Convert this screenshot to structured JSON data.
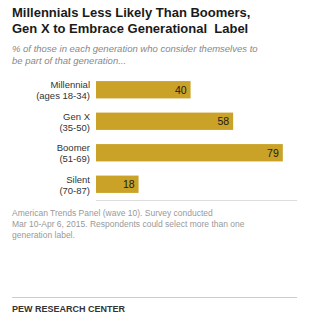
{
  "chart_data": {
    "type": "bar",
    "orientation": "horizontal",
    "title": "Millennials Less Likely Than Boomers,\nGen X to Embrace Generational  Label",
    "subtitle": "% of those in each generation who consider themselves to\nbe part of that generation...",
    "categories": [
      "Millennial\n(ages 18-34)",
      "Gen X\n(35-50)",
      "Boomer\n(51-69)",
      "Silent\n(70-87)"
    ],
    "values": [
      40,
      58,
      79,
      18
    ],
    "color": "#C9A227",
    "xlim": [
      0,
      85
    ],
    "data_labels": true,
    "tick_labels": "y",
    "annotations": [
      "American Trends Panel (wave 10). Survey conducted\nMar 10-Apr 6, 2015. Respondents could select more than one\ngeneration label.",
      "PEW RESEARCH CENTER"
    ]
  }
}
